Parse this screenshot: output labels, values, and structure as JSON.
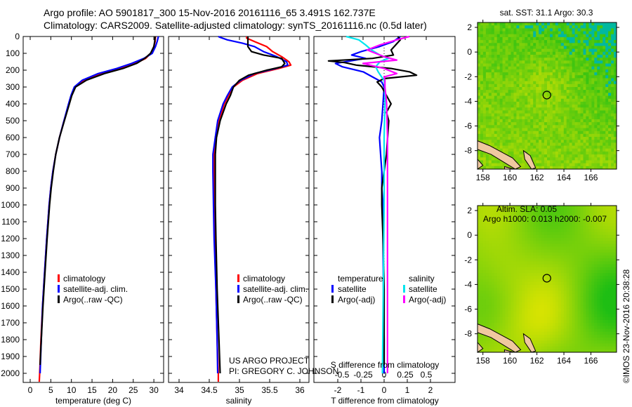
{
  "header": {
    "line1": "Argo profile: AO 5901817_300 15-Nov-2016 20161116_65 3.491S 162.737E",
    "line2": "Climatology: CARS2009. Satellite-adjusted climatology: synTS_20161116.nc (0.5d later)"
  },
  "credits": {
    "project": "US ARGO PROJECT",
    "pi": "PI: GREGORY C. JOHNSON",
    "stamp": "©IMOS 23-Nov-2016 20:38:28"
  },
  "colors": {
    "climatology": "#ff0000",
    "satellite": "#0000ff",
    "argo": "#000000",
    "sal_satellite": "#00e5ee",
    "sal_argo": "#ff00ff"
  },
  "chart_data": [
    {
      "type": "line",
      "xlabel": "temperature (deg C)",
      "ylabel": "",
      "xlim": [
        -1,
        32
      ],
      "ylim": [
        2050,
        0
      ],
      "xticks": [
        0,
        5,
        10,
        15,
        20,
        25,
        30
      ],
      "yticks": [
        0,
        100,
        200,
        300,
        400,
        500,
        600,
        700,
        800,
        900,
        1000,
        1100,
        1200,
        1300,
        1400,
        1500,
        1600,
        1700,
        1800,
        1900,
        2000
      ],
      "legend": [
        "climatology",
        "satellite-adj. clim.",
        "Argo(..raw -QC)"
      ],
      "series": [
        {
          "name": "climatology",
          "color": "#ff0000",
          "depth": [
            0,
            30,
            60,
            100,
            130,
            160,
            190,
            220,
            260,
            300,
            350,
            400,
            500,
            600,
            700,
            800,
            900,
            1000,
            1200,
            1400,
            1600,
            1800,
            2000,
            2050
          ],
          "value": [
            30.4,
            30.3,
            30.0,
            29.3,
            28.0,
            25.5,
            22.0,
            17.5,
            13.0,
            10.8,
            10.0,
            9.4,
            8.2,
            7.1,
            6.2,
            5.5,
            5.0,
            4.6,
            4.0,
            3.5,
            3.0,
            2.6,
            2.3,
            2.2
          ]
        },
        {
          "name": "satellite-adj. clim.",
          "color": "#0000ff",
          "depth": [
            0,
            30,
            60,
            100,
            130,
            160,
            190,
            220,
            260,
            300,
            350,
            400,
            500,
            600,
            700,
            800,
            900,
            1000,
            1200,
            1400,
            1600,
            1800,
            2000
          ],
          "value": [
            31.1,
            30.8,
            30.4,
            29.6,
            27.6,
            24.6,
            21.0,
            16.5,
            12.6,
            10.7,
            9.9,
            9.3,
            8.2,
            7.1,
            6.2,
            5.5,
            5.0,
            4.6,
            4.0,
            3.5,
            3.0,
            2.7,
            2.4
          ]
        },
        {
          "name": "Argo(..raw -QC)",
          "color": "#000000",
          "depth": [
            0,
            30,
            60,
            100,
            130,
            160,
            190,
            220,
            260,
            300,
            350,
            400,
            500,
            600,
            700,
            800,
            900,
            1000,
            1200,
            1400,
            1600,
            1800,
            1950
          ],
          "value": [
            30.3,
            30.2,
            30.0,
            29.2,
            27.8,
            25.8,
            22.5,
            18.0,
            13.6,
            11.0,
            10.1,
            9.5,
            8.3,
            7.1,
            6.2,
            5.6,
            5.1,
            4.7,
            4.1,
            3.6,
            3.1,
            2.7,
            2.4
          ]
        }
      ]
    },
    {
      "type": "line",
      "xlabel": "salinity",
      "xlim": [
        33.7,
        36.1
      ],
      "ylim": [
        2050,
        0
      ],
      "xticks": [
        34,
        34.5,
        35,
        35.5,
        36
      ],
      "legend": [
        "climatology",
        "satellite-adj. clim.",
        "Argo(..raw -QC)"
      ],
      "series": [
        {
          "name": "climatology",
          "color": "#ff0000",
          "depth": [
            0,
            10,
            30,
            60,
            90,
            120,
            150,
            170,
            190,
            220,
            260,
            300,
            350,
            400,
            500,
            600,
            700,
            800,
            1000,
            1200,
            1500,
            1800,
            2000,
            2050
          ],
          "value": [
            35.12,
            35.12,
            35.25,
            35.45,
            35.55,
            35.7,
            35.82,
            35.85,
            35.65,
            35.3,
            35.05,
            34.9,
            34.82,
            34.75,
            34.66,
            34.6,
            34.58,
            34.58,
            34.58,
            34.59,
            34.61,
            34.63,
            34.65,
            34.65
          ]
        },
        {
          "name": "satellite-adj. clim.",
          "color": "#0000ff",
          "depth": [
            0,
            5,
            20,
            40,
            60,
            90,
            120,
            150,
            170,
            190,
            220,
            260,
            300,
            350,
            400,
            500,
            600,
            700,
            800,
            1000,
            1200,
            1500,
            1800,
            2000
          ],
          "value": [
            34.65,
            34.68,
            34.8,
            35.05,
            35.25,
            35.4,
            35.62,
            35.78,
            35.8,
            35.6,
            35.25,
            35.02,
            34.88,
            34.8,
            34.73,
            34.64,
            34.6,
            34.56,
            34.56,
            34.57,
            34.58,
            34.61,
            34.63,
            34.64
          ]
        },
        {
          "name": "Argo(..raw -QC)",
          "color": "#000000",
          "depth": [
            0,
            30,
            60,
            90,
            110,
            130,
            160,
            180,
            200,
            230,
            260,
            300,
            350,
            400,
            500,
            600,
            700,
            800,
            1000,
            1200,
            1500,
            1800,
            2000
          ],
          "value": [
            35.14,
            35.14,
            35.14,
            35.2,
            35.4,
            35.7,
            35.75,
            35.7,
            35.45,
            35.15,
            35.0,
            34.9,
            34.85,
            34.78,
            34.68,
            34.62,
            34.6,
            34.6,
            34.6,
            34.61,
            34.63,
            34.66,
            34.68
          ]
        }
      ]
    },
    {
      "type": "line",
      "xlabel": "T difference from climatology",
      "x2label": "S difference from climatology",
      "xlim": [
        -3.1,
        3.1
      ],
      "ylim": [
        2050,
        0
      ],
      "xticks": [
        -2,
        -1,
        0,
        1,
        2
      ],
      "x2ticks": [
        -0.5,
        -0.25,
        0,
        0.25,
        0.5
      ],
      "legend": {
        "temperature_header": "temperature",
        "salinity_header": "salinity",
        "t_sat": "satellite",
        "t_argo": "Argo(-adj)",
        "s_sat": "satellite",
        "s_argo": "Argo(-adj)"
      },
      "series": [
        {
          "name": "temperature satellite",
          "axis": "T",
          "color": "#0000ff",
          "depth": [
            0,
            30,
            60,
            90,
            110,
            130,
            160,
            180,
            210,
            240,
            270,
            300,
            400,
            500,
            600,
            700,
            800,
            900,
            1000,
            1200,
            1500,
            1800,
            2000
          ],
          "value": [
            0.7,
            0.4,
            -0.2,
            -1.0,
            -1.4,
            -0.8,
            -2.1,
            -1.8,
            -0.9,
            -0.5,
            -0.1,
            0.0,
            -0.05,
            -0.1,
            -0.2,
            -0.15,
            -0.1,
            -0.1,
            -0.05,
            -0.05,
            -0.03,
            0.0,
            0.0
          ]
        },
        {
          "name": "temperature Argo(-adj)",
          "axis": "T",
          "color": "#000000",
          "depth": [
            0,
            20,
            50,
            80,
            110,
            130,
            145,
            155,
            170,
            190,
            210,
            230,
            250,
            270,
            300,
            350,
            400,
            450,
            500,
            600,
            700,
            800,
            900,
            1000,
            1200,
            1500,
            1800,
            1950
          ],
          "value": [
            0.6,
            0.7,
            0.5,
            0.3,
            0.4,
            -0.5,
            -2.4,
            -1.7,
            -1.2,
            0.3,
            1.1,
            1.4,
            0.0,
            -0.3,
            -0.1,
            0.1,
            0.3,
            0.1,
            0.2,
            0.15,
            0.1,
            0.0,
            -0.1,
            -0.1,
            -0.05,
            0.0,
            0.0,
            0.0
          ]
        },
        {
          "name": "salinity satellite",
          "axis": "S",
          "color": "#00e5ee",
          "depth": [
            0,
            20,
            50,
            80,
            110,
            130,
            150,
            180,
            210,
            240,
            260,
            300,
            400,
            600,
            800,
            1000,
            1500,
            2000
          ],
          "value": [
            -0.45,
            -0.3,
            -0.22,
            -0.15,
            -0.05,
            0.05,
            -0.05,
            -0.1,
            -0.07,
            -0.03,
            0.0,
            0.01,
            0.01,
            0.0,
            0.0,
            0.0,
            -0.01,
            -0.02
          ]
        },
        {
          "name": "salinity Argo(-adj)",
          "axis": "S",
          "color": "#ff00ff",
          "depth": [
            0,
            20,
            50,
            80,
            100,
            120,
            140,
            160,
            190,
            220,
            240,
            260,
            300,
            400,
            600,
            800,
            1000,
            1500,
            2000
          ],
          "value": [
            0.3,
            0.15,
            -0.05,
            -0.2,
            -0.1,
            0.0,
            0.15,
            -0.25,
            0.0,
            0.15,
            0.0,
            0.01,
            0.01,
            0.03,
            0.04,
            0.04,
            0.04,
            0.04,
            0.04
          ]
        }
      ]
    },
    {
      "type": "heatmap",
      "title": "sat. SST: 31.1  Argo: 30.3",
      "xlim": [
        157.6,
        167.9
      ],
      "ylim": [
        -9.5,
        2.4
      ],
      "xticks": [
        158,
        160,
        162,
        164,
        166
      ],
      "yticks": [
        2,
        0,
        -2,
        -4,
        -6,
        -8
      ],
      "marker": {
        "lon": 162.737,
        "lat": -3.491
      }
    },
    {
      "type": "heatmap",
      "title": "Altim. SLA: 0.05",
      "subtitle": "Argo h1000: 0.013 h2000: -0.007",
      "xlim": [
        157.6,
        167.9
      ],
      "ylim": [
        -9.5,
        2.4
      ],
      "xticks": [
        158,
        160,
        162,
        164,
        166
      ],
      "yticks": [
        2,
        0,
        -2,
        -4,
        -6,
        -8
      ],
      "marker": {
        "lon": 162.737,
        "lat": -3.491
      }
    }
  ]
}
